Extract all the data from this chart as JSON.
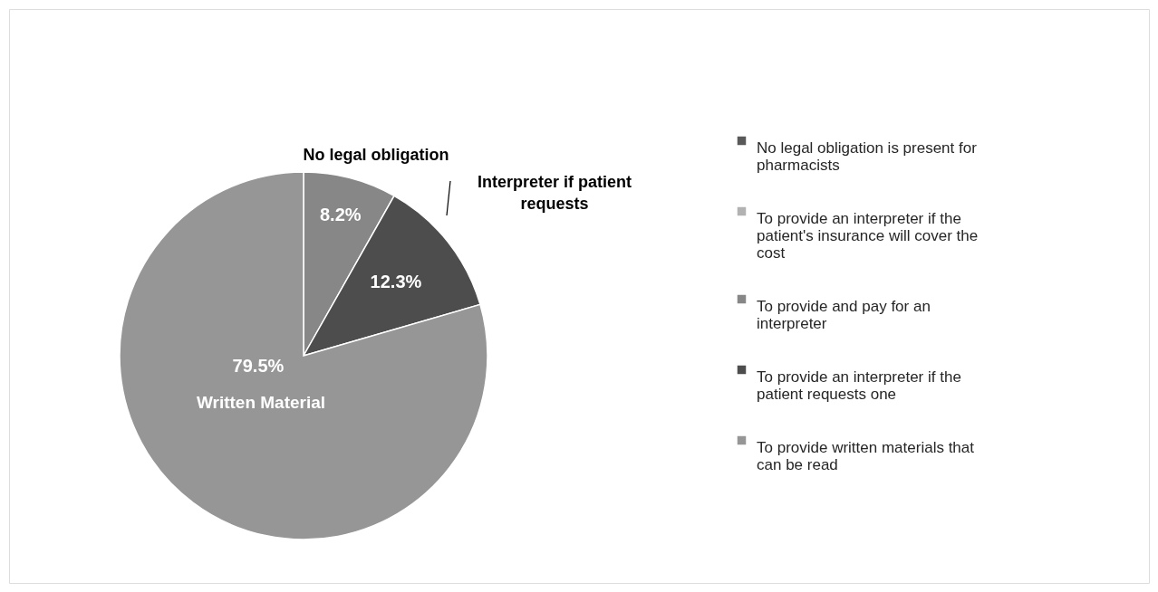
{
  "chart_data": {
    "type": "pie",
    "categories": [
      "No legal obligation is present for pharmacists",
      "To provide an interpreter if the patient's insurance will cover the cost",
      "To provide and pay for an interpreter",
      "To provide an interpreter if the patient requests one",
      "To provide written materials that can be read"
    ],
    "values": [
      0,
      0,
      8.2,
      12.3,
      79.5
    ],
    "colors": [
      "#595959",
      "#b2b2b2",
      "#878787",
      "#4d4d4d",
      "#969696"
    ],
    "value_labels": [
      null,
      null,
      "8.2%",
      "12.3%",
      "79.5%"
    ],
    "annotations": [
      "No legal obligation",
      "Interpreter if patient requests",
      "Written Material"
    ],
    "legend": "right"
  }
}
